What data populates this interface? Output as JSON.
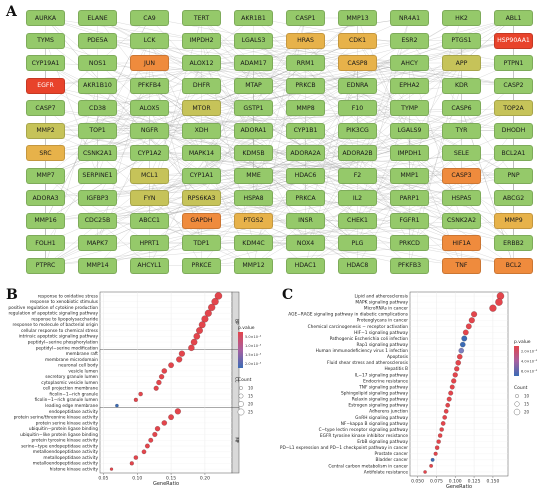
{
  "panels": {
    "a": "A",
    "b": "B",
    "c": "C"
  },
  "ppi": {
    "colors": {
      "1": "#7cbe5c",
      "2": "#95c96a",
      "3": "#c6c359",
      "4": "#e7b24a",
      "5": "#ef8b3d",
      "6": "#e8432b"
    },
    "rows": [
      [
        [
          "AURKA",
          2
        ],
        [
          "ELANE",
          2
        ],
        [
          "CA9",
          2
        ],
        [
          "TERT",
          2
        ],
        [
          "AKR1B1",
          2
        ],
        [
          "CASP1",
          2
        ],
        [
          "MMP13",
          2
        ],
        [
          "NR4A1",
          2
        ],
        [
          "HK2",
          2
        ],
        [
          "ABL1",
          2
        ]
      ],
      [
        [
          "TYMS",
          2
        ],
        [
          "PDE5A",
          2
        ],
        [
          "LCK",
          2
        ],
        [
          "IMPDH2",
          2
        ],
        [
          "LGALS3",
          2
        ],
        [
          "HRAS",
          4
        ],
        [
          "CDK1",
          4
        ],
        [
          "ESR2",
          2
        ],
        [
          "PTGS1",
          2
        ],
        [
          "HSP90AA1",
          6
        ]
      ],
      [
        [
          "CYP19A1",
          2
        ],
        [
          "NOS1",
          2
        ],
        [
          "JUN",
          5
        ],
        [
          "ALOX12",
          2
        ],
        [
          "ADAM17",
          2
        ],
        [
          "RRM1",
          2
        ],
        [
          "CASP8",
          4
        ],
        [
          "AHCY",
          2
        ],
        [
          "APP",
          3
        ],
        [
          "PTPN1",
          2
        ]
      ],
      [
        [
          "EGFR",
          6
        ],
        [
          "AKR1B10",
          2
        ],
        [
          "PFKFB4",
          2
        ],
        [
          "DHFR",
          2
        ],
        [
          "MTAP",
          2
        ],
        [
          "PRKCB",
          2
        ],
        [
          "EDNRA",
          2
        ],
        [
          "EPHA2",
          2
        ],
        [
          "KDR",
          2
        ],
        [
          "CASP2",
          2
        ]
      ],
      [
        [
          "CASP7",
          2
        ],
        [
          "CD38",
          2
        ],
        [
          "ALOX5",
          2
        ],
        [
          "MTOR",
          3
        ],
        [
          "GSTP1",
          2
        ],
        [
          "MMP8",
          2
        ],
        [
          "F10",
          2
        ],
        [
          "TYMP",
          2
        ],
        [
          "CASP6",
          2
        ],
        [
          "TOP2A",
          3
        ]
      ],
      [
        [
          "MMP2",
          3
        ],
        [
          "TOP1",
          2
        ],
        [
          "NGFR",
          2
        ],
        [
          "XDH",
          2
        ],
        [
          "ADORA1",
          2
        ],
        [
          "CYP1B1",
          2
        ],
        [
          "PIK3CG",
          2
        ],
        [
          "LGALS9",
          2
        ],
        [
          "TYR",
          2
        ],
        [
          "DHODH",
          2
        ]
      ],
      [
        [
          "SRC",
          4
        ],
        [
          "CSNK2A1",
          2
        ],
        [
          "CYP1A2",
          2
        ],
        [
          "MAPK14",
          2
        ],
        [
          "KDM5B",
          2
        ],
        [
          "ADORA2A",
          2
        ],
        [
          "ADORA2B",
          2
        ],
        [
          "IMPDH1",
          2
        ],
        [
          "SELE",
          2
        ],
        [
          "BCL2A1",
          2
        ]
      ],
      [
        [
          "MMP7",
          2
        ],
        [
          "SERPINE1",
          2
        ],
        [
          "MCL1",
          3
        ],
        [
          "CYP1A1",
          2
        ],
        [
          "MME",
          2
        ],
        [
          "HDAC6",
          2
        ],
        [
          "F2",
          2
        ],
        [
          "MMP1",
          2
        ],
        [
          "CASP3",
          5
        ],
        [
          "PNP",
          2
        ]
      ],
      [
        [
          "ADORA3",
          2
        ],
        [
          "IGFBP3",
          2
        ],
        [
          "FYN",
          3
        ],
        [
          "RPS6KA3",
          3
        ],
        [
          "HSPA8",
          2
        ],
        [
          "PRKCA",
          2
        ],
        [
          "IL2",
          2
        ],
        [
          "PARP1",
          2
        ],
        [
          "HSPA5",
          2
        ],
        [
          "ABCG2",
          2
        ]
      ],
      [
        [
          "MMP16",
          2
        ],
        [
          "CDC25B",
          2
        ],
        [
          "ABCC1",
          2
        ],
        [
          "GAPDH",
          5
        ],
        [
          "PTGS2",
          4
        ],
        [
          "INSR",
          2
        ],
        [
          "CHEK1",
          2
        ],
        [
          "FGFR1",
          2
        ],
        [
          "CSNK2A2",
          2
        ],
        [
          "MMP9",
          4
        ]
      ],
      [
        [
          "FOLH1",
          2
        ],
        [
          "MAPK7",
          2
        ],
        [
          "HPRT1",
          2
        ],
        [
          "TDP1",
          2
        ],
        [
          "KDM4C",
          2
        ],
        [
          "NOX4",
          2
        ],
        [
          "PLG",
          2
        ],
        [
          "PRKCD",
          2
        ],
        [
          "HIF1A",
          5
        ],
        [
          "ERBB2",
          2
        ]
      ],
      [
        [
          "PTPRC",
          2
        ],
        [
          "MMP14",
          2
        ],
        [
          "AHCYL1",
          2
        ],
        [
          "PRKCE",
          2
        ],
        [
          "MMP12",
          2
        ],
        [
          "HDAC1",
          2
        ],
        [
          "HDAC8",
          2
        ],
        [
          "PFKFB3",
          2
        ],
        [
          "TNF",
          5
        ],
        [
          "BCL2",
          5
        ]
      ]
    ]
  },
  "chart_data": [
    {
      "type": "scatter",
      "panel": "B",
      "xlabel": "GeneRatio",
      "xticks": [
        "0.05",
        "0.10",
        "0.15",
        "0.20"
      ],
      "xlim": [
        0.045,
        0.24
      ],
      "facets": [
        "BP",
        "CC",
        "MF"
      ],
      "legend": {
        "color_title": "p.value",
        "color_labels": [
          "5.0×10⁻⁴",
          "1.0×10⁻³",
          "1.5×10⁻³",
          "2.0×10⁻³"
        ],
        "size_title": "Count",
        "size_labels": [
          "10",
          "15",
          "20",
          "25"
        ]
      },
      "terms": [
        {
          "facet": "BP",
          "label": "response to oxidative stress",
          "x": 0.22,
          "count": 26,
          "color": "#e3454c"
        },
        {
          "facet": "BP",
          "label": "response to xenobiotic stimulus",
          "x": 0.215,
          "count": 25,
          "color": "#e3454c"
        },
        {
          "facet": "BP",
          "label": "positive regulation of cytokine production",
          "x": 0.21,
          "count": 25,
          "color": "#e3454c"
        },
        {
          "facet": "BP",
          "label": "regulation of apoptotic signaling pathway",
          "x": 0.205,
          "count": 24,
          "color": "#e3454c"
        },
        {
          "facet": "BP",
          "label": "response to lipopolysaccharide",
          "x": 0.2,
          "count": 24,
          "color": "#e3454c"
        },
        {
          "facet": "BP",
          "label": "response to molecule of bacterial origin",
          "x": 0.196,
          "count": 23,
          "color": "#e3454c"
        },
        {
          "facet": "BP",
          "label": "cellular response to chemical stress",
          "x": 0.192,
          "count": 23,
          "color": "#e3454c"
        },
        {
          "facet": "BP",
          "label": "intrinsic apoptotic signaling pathway",
          "x": 0.188,
          "count": 22,
          "color": "#e3454c"
        },
        {
          "facet": "BP",
          "label": "peptidyl−serine phosphorylation",
          "x": 0.184,
          "count": 22,
          "color": "#e3454c"
        },
        {
          "facet": "BP",
          "label": "peptidyl−serine modification",
          "x": 0.18,
          "count": 21,
          "color": "#e3454c"
        },
        {
          "facet": "CC",
          "label": "membrane raft",
          "x": 0.166,
          "count": 20,
          "color": "#e3454c"
        },
        {
          "facet": "CC",
          "label": "membrane microdomain",
          "x": 0.162,
          "count": 20,
          "color": "#e3454c"
        },
        {
          "facet": "CC",
          "label": "neuronal cell body",
          "x": 0.15,
          "count": 18,
          "color": "#e3454c"
        },
        {
          "facet": "CC",
          "label": "vesicle lumen",
          "x": 0.14,
          "count": 17,
          "color": "#e3454c"
        },
        {
          "facet": "CC",
          "label": "secretory granule lumen",
          "x": 0.136,
          "count": 16,
          "color": "#e3454c"
        },
        {
          "facet": "CC",
          "label": "cytoplasmic vesicle lumen",
          "x": 0.132,
          "count": 16,
          "color": "#e3454c"
        },
        {
          "facet": "CC",
          "label": "cell projection membrane",
          "x": 0.128,
          "count": 15,
          "color": "#e3454c"
        },
        {
          "facet": "CC",
          "label": "ficolin−1−rich granule",
          "x": 0.105,
          "count": 12,
          "color": "#e3454c"
        },
        {
          "facet": "CC",
          "label": "ficolin−1−rich granule lumen",
          "x": 0.098,
          "count": 11,
          "color": "#e3454c"
        },
        {
          "facet": "CC",
          "label": "leading edge membrane",
          "x": 0.07,
          "count": 8,
          "color": "#3b6bb5"
        },
        {
          "facet": "MF",
          "label": "endopeptidase activity",
          "x": 0.16,
          "count": 20,
          "color": "#e3454c"
        },
        {
          "facet": "MF",
          "label": "protein serine/threonine kinase activity",
          "x": 0.15,
          "count": 18,
          "color": "#e3454c"
        },
        {
          "facet": "MF",
          "label": "protein serine kinase activity",
          "x": 0.14,
          "count": 17,
          "color": "#e3454c"
        },
        {
          "facet": "MF",
          "label": "ubiquitin−protein ligase binding",
          "x": 0.13,
          "count": 16,
          "color": "#e3454c"
        },
        {
          "facet": "MF",
          "label": "ubiquitin−like protein ligase binding",
          "x": 0.126,
          "count": 15,
          "color": "#e3454c"
        },
        {
          "facet": "MF",
          "label": "protein tyrosine kinase activity",
          "x": 0.12,
          "count": 14,
          "color": "#e3454c"
        },
        {
          "facet": "MF",
          "label": "serine−type endopeptidase activity",
          "x": 0.115,
          "count": 14,
          "color": "#e3454c"
        },
        {
          "facet": "MF",
          "label": "metalloendopeptidase activity",
          "x": 0.11,
          "count": 13,
          "color": "#e3454c"
        },
        {
          "facet": "MF",
          "label": "metallopeptidase activity",
          "x": 0.098,
          "count": 12,
          "color": "#e3454c"
        },
        {
          "facet": "MF",
          "label": "metalloendopeptidase activity",
          "x": 0.092,
          "count": 11,
          "color": "#e3454c"
        },
        {
          "facet": "MF",
          "label": "histone kinase activity",
          "x": 0.062,
          "count": 7,
          "color": "#e3454c"
        }
      ]
    },
    {
      "type": "scatter",
      "panel": "C",
      "xlabel": "GeneRatio",
      "xticks": [
        "0.050",
        "0.075",
        "0.100",
        "0.125",
        "0.150"
      ],
      "xlim": [
        0.04,
        0.17
      ],
      "legend": {
        "color_title": "p.value",
        "color_labels": [
          "2.0×10⁻⁶",
          "4.0×10⁻⁶",
          "6.0×10⁻⁶"
        ],
        "size_title": "Count",
        "size_labels": [
          "10",
          "15",
          "20"
        ]
      },
      "terms": [
        {
          "label": "Lipid and atherosclerosis",
          "x": 0.16,
          "count": 22,
          "color": "#e3454c"
        },
        {
          "label": "MAPK signaling pathway",
          "x": 0.158,
          "count": 22,
          "color": "#e3454c"
        },
        {
          "label": "MicroRNAs in cancer",
          "x": 0.15,
          "count": 21,
          "color": "#e3454c"
        },
        {
          "label": "AGE−RAGE signaling pathway in diabetic complications",
          "x": 0.125,
          "count": 17,
          "color": "#e3454c"
        },
        {
          "label": "Proteoglycans in cancer",
          "x": 0.122,
          "count": 17,
          "color": "#e3454c"
        },
        {
          "label": "Chemical carcinogenesis − receptor activation",
          "x": 0.118,
          "count": 16,
          "color": "#e3454c"
        },
        {
          "label": "HIF−1 signaling pathway",
          "x": 0.114,
          "count": 16,
          "color": "#e3454c"
        },
        {
          "label": "Pathogenic Escherichia coli infection",
          "x": 0.112,
          "count": 16,
          "color": "#3b6bb5"
        },
        {
          "label": "Rap1 signaling pathway",
          "x": 0.11,
          "count": 15,
          "color": "#3b6bb5"
        },
        {
          "label": "Human immunodeficiency virus 1 infection",
          "x": 0.108,
          "count": 15,
          "color": "#7a7fc0"
        },
        {
          "label": "Apoptosis",
          "x": 0.106,
          "count": 15,
          "color": "#e3454c"
        },
        {
          "label": "Fluid shear stress and atherosclerosis",
          "x": 0.104,
          "count": 15,
          "color": "#e3454c"
        },
        {
          "label": "Hepatitis B",
          "x": 0.102,
          "count": 14,
          "color": "#e3454c"
        },
        {
          "label": "IL−17 signaling pathway",
          "x": 0.1,
          "count": 14,
          "color": "#e3454c"
        },
        {
          "label": "Endocrine resistance",
          "x": 0.098,
          "count": 14,
          "color": "#e3454c"
        },
        {
          "label": "TNF signaling pathway",
          "x": 0.096,
          "count": 13,
          "color": "#e3454c"
        },
        {
          "label": "Sphingolipid signaling pathway",
          "x": 0.094,
          "count": 13,
          "color": "#e3454c"
        },
        {
          "label": "Relaxin signaling pathway",
          "x": 0.092,
          "count": 13,
          "color": "#e3454c"
        },
        {
          "label": "Estrogen signaling pathway",
          "x": 0.09,
          "count": 12,
          "color": "#e3454c"
        },
        {
          "label": "Adherens junction",
          "x": 0.088,
          "count": 12,
          "color": "#e3454c"
        },
        {
          "label": "GnRH signaling pathway",
          "x": 0.086,
          "count": 12,
          "color": "#e3454c"
        },
        {
          "label": "NF−kappa B signaling pathway",
          "x": 0.084,
          "count": 12,
          "color": "#e3454c"
        },
        {
          "label": "C−type lectin receptor signaling pathway",
          "x": 0.082,
          "count": 11,
          "color": "#e3454c"
        },
        {
          "label": "EGFR tyrosine kinase inhibitor resistance",
          "x": 0.08,
          "count": 11,
          "color": "#e3454c"
        },
        {
          "label": "ErbB signaling pathway",
          "x": 0.078,
          "count": 11,
          "color": "#e3454c"
        },
        {
          "label": "PD−L1 expression and PD−1 checkpoint pathway in cancer",
          "x": 0.076,
          "count": 11,
          "color": "#e3454c"
        },
        {
          "label": "Prostate cancer",
          "x": 0.074,
          "count": 10,
          "color": "#e3454c"
        },
        {
          "label": "Bladder cancer",
          "x": 0.07,
          "count": 9,
          "color": "#3b6bb5"
        },
        {
          "label": "Central carbon metabolism in cancer",
          "x": 0.068,
          "count": 9,
          "color": "#e3454c"
        },
        {
          "label": "Antifolate resistance",
          "x": 0.06,
          "count": 8,
          "color": "#e3454c"
        }
      ]
    }
  ]
}
